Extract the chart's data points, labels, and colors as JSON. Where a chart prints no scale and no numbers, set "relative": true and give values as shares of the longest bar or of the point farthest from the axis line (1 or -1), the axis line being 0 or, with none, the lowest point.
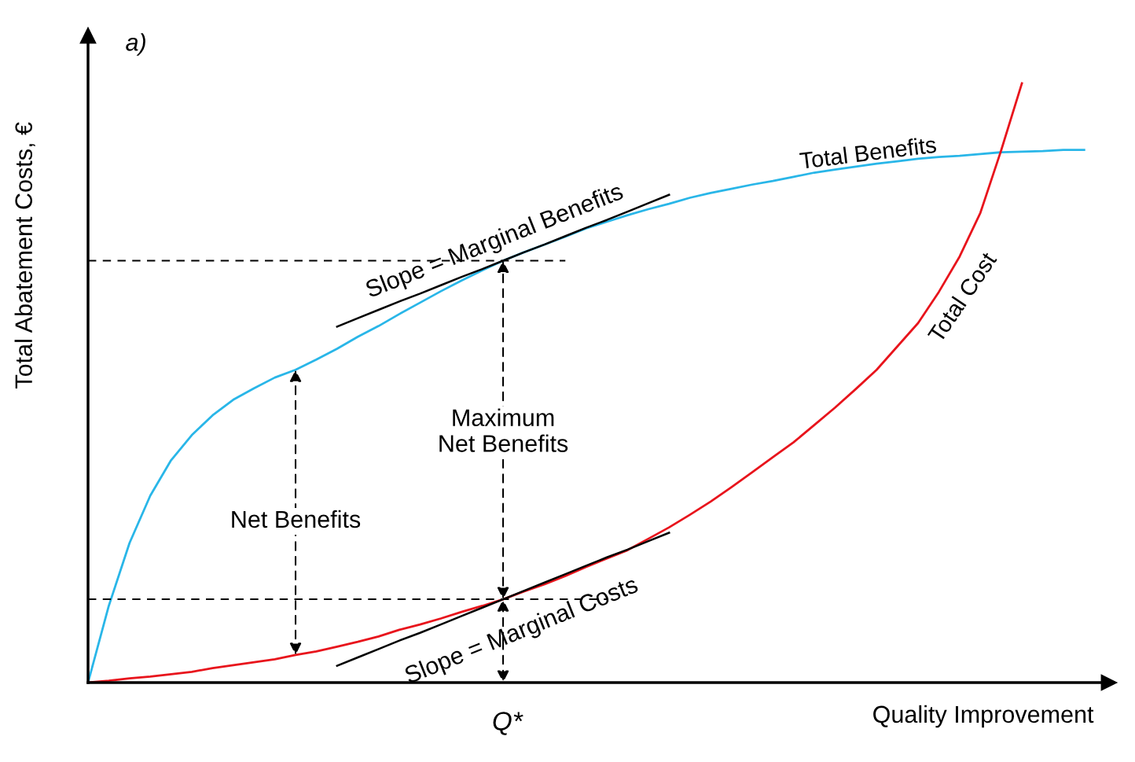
{
  "chart_data": {
    "type": "line",
    "relative": true,
    "ylabel": "Total Abatement Costs, €",
    "xlabel": "Quality Improvement",
    "categories": [
      null,
      null,
      null,
      null,
      null,
      null,
      null,
      null,
      null,
      null,
      null,
      null,
      null,
      null,
      null,
      null,
      null,
      null,
      null,
      null,
      null,
      null,
      null,
      null,
      null,
      null,
      null,
      null,
      null,
      null,
      null,
      null,
      null,
      null,
      null,
      null,
      null,
      null,
      null,
      null,
      null,
      null,
      null,
      null,
      null,
      null,
      null,
      null,
      null
    ],
    "series": [
      {
        "name": "Total Benefits",
        "color": "#29b6e8",
        "values": [
          0,
          0.128,
          0.233,
          0.312,
          0.371,
          0.413,
          0.446,
          0.472,
          0.491,
          0.509,
          0.522,
          0.539,
          0.557,
          0.577,
          0.595,
          0.615,
          0.634,
          0.653,
          0.671,
          0.688,
          0.704,
          0.718,
          0.731,
          0.744,
          0.758,
          0.769,
          0.78,
          0.79,
          0.799,
          0.809,
          0.817,
          0.824,
          0.831,
          0.837,
          0.844,
          0.851,
          0.856,
          0.861,
          0.866,
          0.87,
          0.874,
          0.877,
          0.879,
          0.882,
          0.885,
          0.886,
          0.887,
          0.889,
          0.889
        ]
      },
      {
        "name": "Total Cost",
        "color": "#e8141c",
        "values": [
          0,
          0.003,
          0.007,
          0.01,
          0.014,
          0.018,
          0.024,
          0.029,
          0.034,
          0.039,
          0.046,
          0.052,
          0.06,
          0.068,
          0.077,
          0.088,
          0.097,
          0.107,
          0.118,
          0.128,
          0.139,
          0.152,
          0.164,
          0.178,
          0.193,
          0.207,
          0.221,
          0.24,
          0.259,
          0.28,
          0.302,
          0.326,
          0.351,
          0.376,
          0.401,
          0.43,
          0.459,
          0.49,
          0.522,
          0.561,
          0.6,
          0.652,
          0.711,
          0.784,
          0.888,
          1.0,
          null,
          null,
          null
        ]
      },
      {
        "color": "#000000",
        "values": [
          null,
          null,
          null,
          null,
          null,
          null,
          null,
          null,
          null,
          null,
          null,
          null,
          0.594,
          0.608,
          0.622,
          0.636,
          0.649,
          0.663,
          0.677,
          0.69,
          0.704,
          0.718,
          0.731,
          0.745,
          0.759,
          0.772,
          0.786,
          0.8,
          0.814,
          null,
          null,
          null,
          null,
          null,
          null,
          null,
          null,
          null,
          null,
          null,
          null,
          null,
          null,
          null,
          null,
          null,
          null,
          null,
          null
        ]
      },
      {
        "color": "#000000",
        "values": [
          null,
          null,
          null,
          null,
          null,
          null,
          null,
          null,
          null,
          null,
          null,
          null,
          0.028,
          0.042,
          0.056,
          0.07,
          0.083,
          0.097,
          0.111,
          0.125,
          0.139,
          0.153,
          0.167,
          0.181,
          0.195,
          0.209,
          0.222,
          0.236,
          0.25,
          null,
          null,
          null,
          null,
          null,
          null,
          null,
          null,
          null,
          null,
          null,
          null,
          null,
          null,
          null,
          null,
          null,
          null,
          null,
          null
        ]
      }
    ],
    "ref_lines": [
      {
        "axis": "y",
        "value": 0.704,
        "color": "#000000",
        "line_style": "dashed"
      },
      {
        "axis": "y",
        "value": 0.139,
        "color": "#000000",
        "line_style": "dashed"
      }
    ],
    "annotations": [
      "a)",
      "Slope = Marginal Benefits",
      "Slope = Marginal Costs",
      "Net Benefits",
      "Maximum\nNet Benefits",
      "Q*"
    ]
  }
}
